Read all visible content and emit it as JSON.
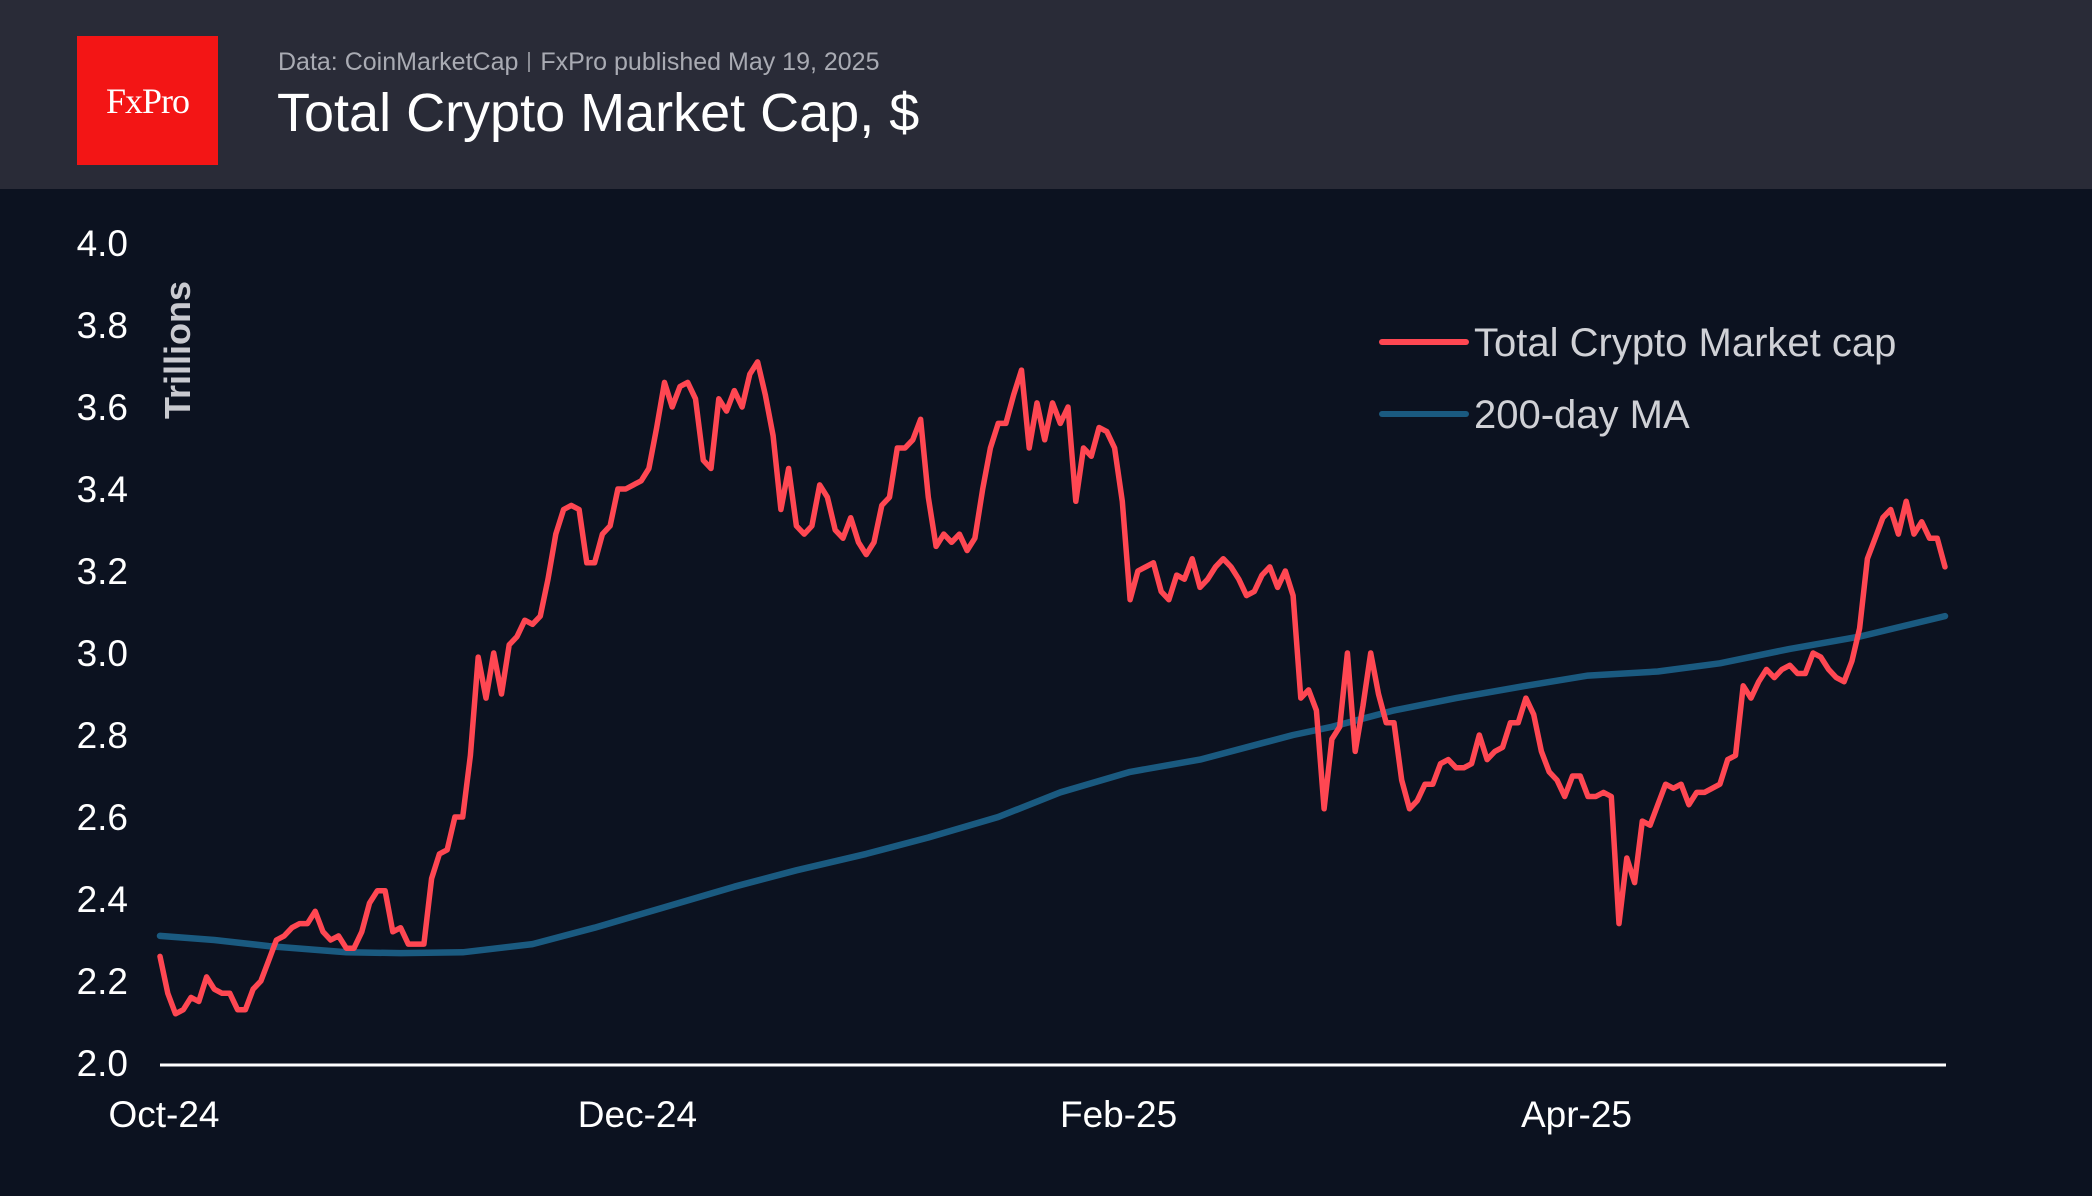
{
  "header": {
    "logo_text": "FxPro",
    "source": "Data: CoinMarketCap",
    "published": "FxPro published May 19, 2025",
    "title": "Total Crypto Market Cap, $"
  },
  "chart_data": {
    "type": "line",
    "title": "Total Crypto Market Cap, $",
    "ylabel": "Trillions",
    "xlabel": "",
    "ylim": [
      2.0,
      4.0
    ],
    "yticks": [
      "2.0",
      "2.2",
      "2.4",
      "2.6",
      "2.8",
      "3.0",
      "3.2",
      "3.4",
      "3.6",
      "3.8",
      "4.0"
    ],
    "xticks": [
      {
        "label": "Oct-24",
        "date": "2024-10-01"
      },
      {
        "label": "Dec-24",
        "date": "2024-12-01"
      },
      {
        "label": "Feb-25",
        "date": "2025-02-01"
      },
      {
        "label": "Apr-25",
        "date": "2025-04-01"
      }
    ],
    "xlim": [
      "2024-10-01",
      "2025-05-19"
    ],
    "grid": false,
    "legend_position": "top-right",
    "series": [
      {
        "name": "Total Crypto Market cap",
        "color": "#ff4752",
        "daily_values_by_month": {
          "2024-10": [
            2.26,
            2.17,
            2.12,
            2.13,
            2.16,
            2.15,
            2.21,
            2.18,
            2.17,
            2.17,
            2.13,
            2.13,
            2.18,
            2.2,
            2.25,
            2.3,
            2.31,
            2.33,
            2.34,
            2.34,
            2.37,
            2.32,
            2.3,
            2.31,
            2.28,
            2.28,
            2.32,
            2.39,
            2.42,
            2.42,
            2.32
          ],
          "2024-11": [
            2.33,
            2.29,
            2.29,
            2.29,
            2.45,
            2.51,
            2.52,
            2.6,
            2.6,
            2.75,
            2.99,
            2.89,
            3.0,
            2.9,
            3.02,
            3.04,
            3.08,
            3.07,
            3.09,
            3.18,
            3.29,
            3.35,
            3.36,
            3.35,
            3.22,
            3.22,
            3.29,
            3.31,
            3.4,
            3.4
          ],
          "2024-12": [
            3.41,
            3.42,
            3.45,
            3.55,
            3.66,
            3.6,
            3.65,
            3.66,
            3.62,
            3.47,
            3.45,
            3.62,
            3.59,
            3.64,
            3.6,
            3.68,
            3.71,
            3.63,
            3.53,
            3.35,
            3.45,
            3.31,
            3.29,
            3.31,
            3.41,
            3.38,
            3.3,
            3.28,
            3.33,
            3.27,
            3.24
          ],
          "2025-01": [
            3.27,
            3.36,
            3.38,
            3.5,
            3.5,
            3.52,
            3.57,
            3.38,
            3.26,
            3.29,
            3.27,
            3.29,
            3.25,
            3.28,
            3.4,
            3.5,
            3.56,
            3.56,
            3.63,
            3.69,
            3.5,
            3.61,
            3.52,
            3.61,
            3.56,
            3.6,
            3.37,
            3.5,
            3.48,
            3.55,
            3.54
          ],
          "2025-02": [
            3.5,
            3.37,
            3.13,
            3.2,
            3.21,
            3.22,
            3.15,
            3.13,
            3.19,
            3.18,
            3.23,
            3.16,
            3.18,
            3.21,
            3.23,
            3.21,
            3.18,
            3.14,
            3.15,
            3.19,
            3.21,
            3.16,
            3.2,
            3.14,
            2.89,
            2.91,
            2.86,
            2.62
          ],
          "2025-03": [
            2.79,
            2.82,
            3.0,
            2.76,
            2.87,
            3.0,
            2.9,
            2.83,
            2.83,
            2.69,
            2.62,
            2.64,
            2.68,
            2.68,
            2.73,
            2.74,
            2.72,
            2.72,
            2.73,
            2.8,
            2.74,
            2.76,
            2.77,
            2.83,
            2.83,
            2.89,
            2.85,
            2.76,
            2.71,
            2.69,
            2.65
          ],
          "2025-04": [
            2.7,
            2.7,
            2.65,
            2.65,
            2.66,
            2.65,
            2.34,
            2.5,
            2.44,
            2.59,
            2.58,
            2.63,
            2.68,
            2.67,
            2.68,
            2.63,
            2.66,
            2.66,
            2.67,
            2.68,
            2.74,
            2.75,
            2.92,
            2.89,
            2.93,
            2.96,
            2.94,
            2.96,
            2.97,
            2.95
          ],
          "2025-05": [
            2.95,
            3.0,
            2.99,
            2.96,
            2.94,
            2.93,
            2.98,
            3.06,
            3.23,
            3.28,
            3.33,
            3.35,
            3.29,
            3.37,
            3.29,
            3.32,
            3.28,
            3.28,
            3.21
          ]
        }
      },
      {
        "name": "200-day MA",
        "color": "#1a5a80",
        "points": [
          [
            "2024-10-01",
            2.31
          ],
          [
            "2024-10-08",
            2.3
          ],
          [
            "2024-10-15",
            2.285
          ],
          [
            "2024-10-25",
            2.27
          ],
          [
            "2024-11-01",
            2.268
          ],
          [
            "2024-11-09",
            2.27
          ],
          [
            "2024-11-18",
            2.29
          ],
          [
            "2024-11-26",
            2.33
          ],
          [
            "2024-12-05",
            2.38
          ],
          [
            "2024-12-14",
            2.43
          ],
          [
            "2024-12-22",
            2.47
          ],
          [
            "2024-12-31",
            2.51
          ],
          [
            "2025-01-08",
            2.55
          ],
          [
            "2025-01-17",
            2.6
          ],
          [
            "2025-01-25",
            2.66
          ],
          [
            "2025-02-03",
            2.71
          ],
          [
            "2025-02-12",
            2.74
          ],
          [
            "2025-02-20",
            2.78
          ],
          [
            "2025-02-24",
            2.8
          ],
          [
            "2025-03-01",
            2.82
          ],
          [
            "2025-03-09",
            2.86
          ],
          [
            "2025-03-17",
            2.89
          ],
          [
            "2025-03-26",
            2.92
          ],
          [
            "2025-04-03",
            2.945
          ],
          [
            "2025-04-12",
            2.955
          ],
          [
            "2025-04-20",
            2.975
          ],
          [
            "2025-04-29",
            3.01
          ],
          [
            "2025-05-08",
            3.04
          ],
          [
            "2025-05-19",
            3.09
          ]
        ]
      }
    ]
  }
}
